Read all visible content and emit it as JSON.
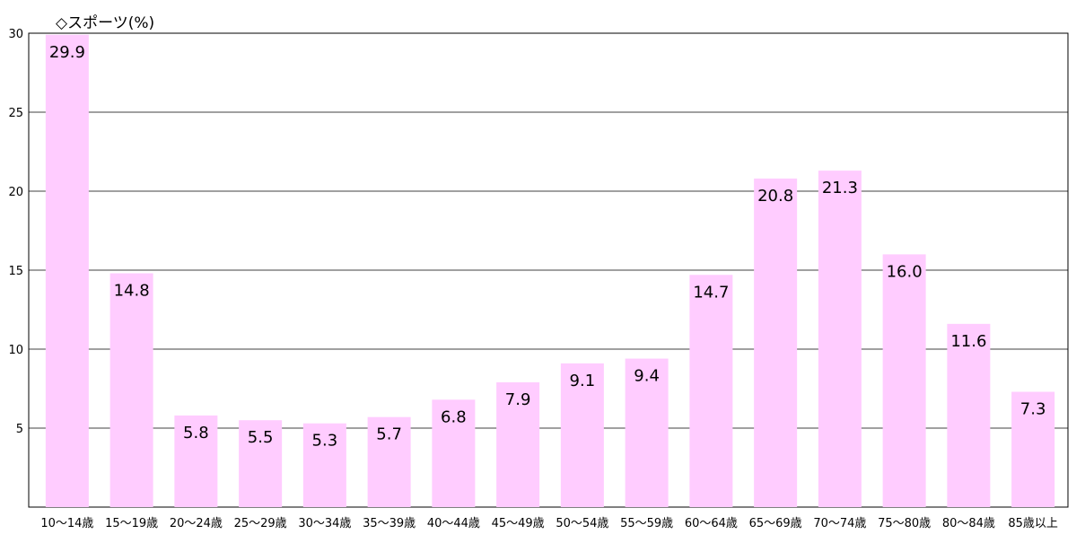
{
  "chart_data": {
    "type": "bar",
    "title": "◇スポーツ(%)",
    "categories": [
      "10～14歳",
      "15～19歳",
      "20～24歳",
      "25～29歳",
      "30～34歳",
      "35～39歳",
      "40～44歳",
      "45～49歳",
      "50～54歳",
      "55～59歳",
      "60～64歳",
      "65～69歳",
      "70～74歳",
      "75～80歳",
      "80～84歳",
      "85歳以上"
    ],
    "values": [
      29.9,
      14.8,
      5.8,
      5.5,
      5.3,
      5.7,
      6.8,
      7.9,
      9.1,
      9.4,
      14.7,
      20.8,
      21.3,
      16.0,
      11.6,
      7.3
    ],
    "value_labels": [
      "29.9",
      "14.8",
      "5.8",
      "5.5",
      "5.3",
      "5.7",
      "6.8",
      "7.9",
      "9.1",
      "9.4",
      "14.7",
      "20.8",
      "21.3",
      "16.0",
      "11.6",
      "7.3"
    ],
    "yticks": [
      "5",
      "10",
      "15",
      "20",
      "25",
      "30"
    ],
    "ylim": [
      0,
      30
    ],
    "grid": true,
    "legend": "none",
    "bar_color": "#ffccff"
  }
}
